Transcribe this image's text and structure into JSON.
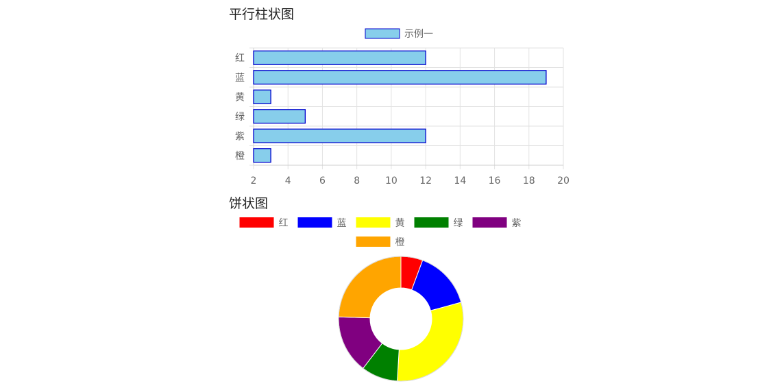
{
  "bar_section": {
    "title": "平行柱状图"
  },
  "pie_section": {
    "title": "饼状图"
  },
  "chart_data": [
    {
      "type": "bar",
      "orientation": "horizontal",
      "title": "平行柱状图",
      "categories": [
        "红",
        "蓝",
        "黄",
        "绿",
        "紫",
        "橙"
      ],
      "series": [
        {
          "name": "示例一",
          "values": [
            12,
            19,
            3,
            5,
            12,
            3
          ]
        }
      ],
      "xlim": [
        2,
        20
      ],
      "xticks": [
        2,
        4,
        6,
        8,
        10,
        12,
        14,
        16,
        18,
        20
      ],
      "grid": true,
      "legend": "top-center",
      "colors": {
        "fill": "#87ceeb",
        "stroke": "#0000cd"
      }
    },
    {
      "type": "pie",
      "variant": "doughnut",
      "title": "饼状图",
      "labels": [
        "红",
        "蓝",
        "黄",
        "绿",
        "紫",
        "橙"
      ],
      "values": [
        3,
        8,
        16,
        5,
        8,
        13
      ],
      "colors": [
        "#ff0000",
        "#0000ff",
        "#ffff00",
        "#008000",
        "#800080",
        "#ffa500"
      ],
      "legend": "top-center"
    }
  ]
}
